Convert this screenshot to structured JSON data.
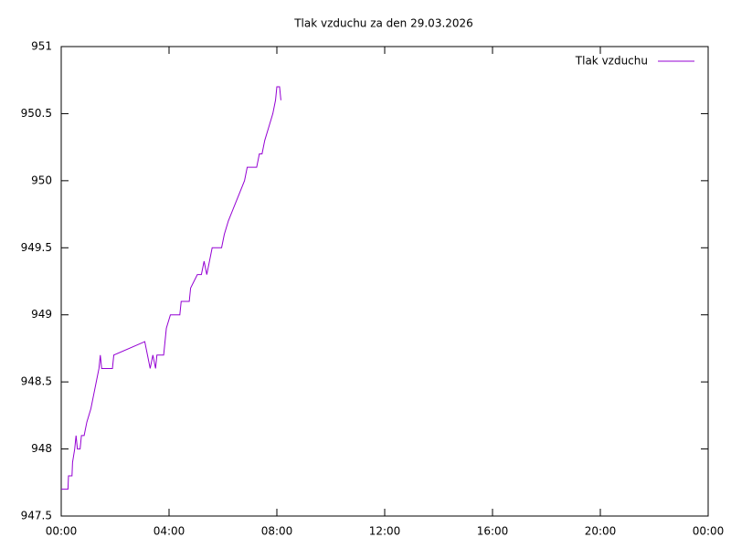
{
  "chart_data": {
    "type": "line",
    "title": "Tlak vzduchu za den 29.03.2026",
    "x": [
      0.0,
      0.25,
      0.27,
      0.4,
      0.42,
      0.5,
      0.55,
      0.6,
      0.7,
      0.75,
      0.85,
      0.95,
      1.1,
      1.2,
      1.3,
      1.4,
      1.45,
      1.5,
      1.9,
      1.95,
      3.1,
      3.2,
      3.3,
      3.4,
      3.5,
      3.55,
      3.8,
      3.9,
      4.05,
      4.4,
      4.45,
      4.75,
      4.8,
      5.05,
      5.2,
      5.3,
      5.4,
      5.5,
      5.6,
      5.95,
      6.05,
      6.2,
      6.4,
      6.6,
      6.8,
      6.9,
      7.25,
      7.35,
      7.45,
      7.55,
      7.7,
      7.85,
      7.95,
      8.0,
      8.1,
      8.15
    ],
    "series": [
      {
        "name": "Tlak vzduchu",
        "color": "#9400d3",
        "values": [
          947.7,
          947.7,
          947.8,
          947.8,
          947.9,
          948.0,
          948.1,
          948.0,
          948.0,
          948.1,
          948.1,
          948.2,
          948.3,
          948.4,
          948.5,
          948.6,
          948.7,
          948.6,
          948.6,
          948.7,
          948.8,
          948.7,
          948.6,
          948.7,
          948.6,
          948.7,
          948.7,
          948.9,
          949.0,
          949.0,
          949.1,
          949.1,
          949.2,
          949.3,
          949.3,
          949.4,
          949.3,
          949.4,
          949.5,
          949.5,
          949.6,
          949.7,
          949.8,
          949.9,
          950.0,
          950.1,
          950.1,
          950.2,
          950.2,
          950.3,
          950.4,
          950.5,
          950.6,
          950.7,
          950.7,
          950.6
        ]
      }
    ],
    "xlim": [
      0,
      24
    ],
    "xticks": [
      {
        "value": 0,
        "label": "00:00"
      },
      {
        "value": 4,
        "label": "04:00"
      },
      {
        "value": 8,
        "label": "08:00"
      },
      {
        "value": 12,
        "label": "12:00"
      },
      {
        "value": 16,
        "label": "16:00"
      },
      {
        "value": 20,
        "label": "20:00"
      },
      {
        "value": 24,
        "label": "00:00"
      }
    ],
    "ylim": [
      947.5,
      951
    ],
    "yticks": [
      947.5,
      948,
      948.5,
      949,
      949.5,
      950,
      950.5,
      951
    ],
    "legend": "top-right",
    "grid": false
  }
}
